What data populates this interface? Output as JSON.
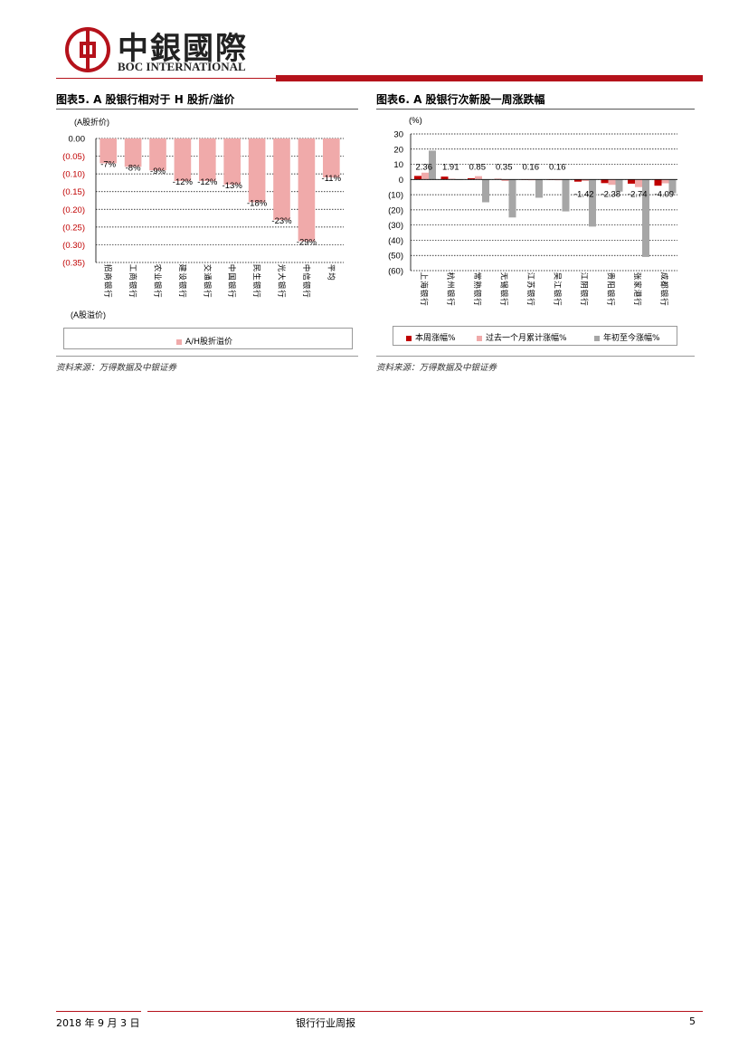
{
  "header": {
    "logo_cn": "中銀國際",
    "logo_en": "BOC INTERNATIONAL"
  },
  "figures": {
    "left_title": "图表5. A 股银行相对于 H 股折/溢价",
    "right_title": "图表6. A 股银行次新股一周涨跌幅",
    "left_source": "资料来源：万得数据及中银证券",
    "right_source": "资料来源：万得数据及中银证券"
  },
  "colors": {
    "brand": "#b5121b",
    "bar_pink": "#f0aaaa",
    "bar_red": "#c00000",
    "bar_grey": "#a6a6a6"
  },
  "chart_data": [
    {
      "type": "bar",
      "ylabel_top": "(A股折价)",
      "ylabel_bottom": "(A股溢价)",
      "ylim": [
        -0.35,
        0.0
      ],
      "yticks": [
        "0.00",
        "(0.05)",
        "(0.10)",
        "(0.15)",
        "(0.20)",
        "(0.25)",
        "(0.30)",
        "(0.35)"
      ],
      "categories": [
        "招商银行",
        "工商银行",
        "农业银行",
        "建设银行",
        "交通银行",
        "中国银行",
        "民生银行",
        "光大银行",
        "中信银行",
        "平均"
      ],
      "series": [
        {
          "name": "A/H股折溢价",
          "values": [
            -0.07,
            -0.08,
            -0.09,
            -0.12,
            -0.12,
            -0.13,
            -0.18,
            -0.23,
            -0.29,
            -0.11
          ],
          "labels": [
            "-7%",
            "-8%",
            "-9%",
            "-12%",
            "-12%",
            "-13%",
            "-18%",
            "-23%",
            "-29%",
            "-11%"
          ]
        }
      ],
      "grid": true,
      "legend": "bottom"
    },
    {
      "type": "bar",
      "ylabel": "(%)",
      "ylim": [
        -60,
        30
      ],
      "yticks": [
        "30",
        "20",
        "10",
        "0",
        "(10)",
        "(20)",
        "(30)",
        "(40)",
        "(50)",
        "(60)"
      ],
      "categories": [
        "上海银行",
        "杭州银行",
        "常熟银行",
        "无锡银行",
        "江苏银行",
        "吴江银行",
        "江阴银行",
        "贵阳银行",
        "张家港行",
        "成都银行"
      ],
      "series": [
        {
          "name": "本周涨幅%",
          "values": [
            2.36,
            1.91,
            0.85,
            0.35,
            0.16,
            0.16,
            -1.42,
            -2.38,
            -2.74,
            -4.09
          ],
          "labels": [
            "2.36",
            "1.91",
            "0.85",
            "0.35",
            "0.16",
            "0.16",
            "-1.42",
            "-2.38",
            "-2.74",
            "-4.09"
          ]
        },
        {
          "name": "过去一个月累计涨幅%",
          "values": [
            4.5,
            0.5,
            2.2,
            -1.0,
            -0.5,
            -0.5,
            -1.0,
            -3.5,
            -5.0,
            -2.5
          ]
        },
        {
          "name": "年初至今涨幅%",
          "values": [
            19,
            0,
            -15,
            -25,
            -12,
            -21,
            -31,
            -8,
            -51,
            -9
          ]
        }
      ],
      "grid": true,
      "legend": "bottom"
    }
  ],
  "footer": {
    "date": "2018 年 9 月 3 日",
    "report": "银行行业周报",
    "page": "5"
  }
}
